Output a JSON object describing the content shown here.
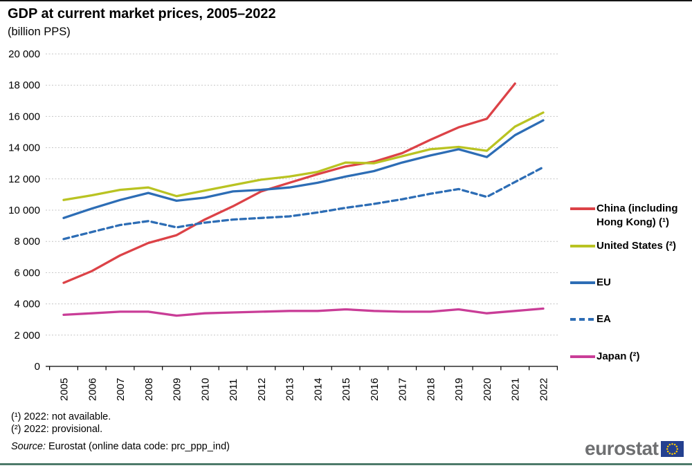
{
  "chart_data": {
    "type": "line",
    "title": "GDP at current market prices, 2005–2022",
    "subtitle": "(billion PPS)",
    "x": [
      2005,
      2006,
      2007,
      2008,
      2009,
      2010,
      2011,
      2012,
      2013,
      2014,
      2015,
      2016,
      2017,
      2018,
      2019,
      2020,
      2021,
      2022
    ],
    "x_tick_labels": [
      "2005",
      "2006",
      "2007",
      "2008",
      "2009",
      "2010",
      "2011",
      "2012",
      "2013",
      "2014",
      "2015",
      "2016",
      "2017",
      "2018",
      "2019",
      "2020",
      "2021",
      "2022"
    ],
    "y_ticks": [
      0,
      2000,
      4000,
      6000,
      8000,
      10000,
      12000,
      14000,
      16000,
      18000,
      20000
    ],
    "y_tick_labels": [
      "0",
      "2 000",
      "4 000",
      "6 000",
      "8 000",
      "10 000",
      "12 000",
      "14 000",
      "16 000",
      "18 000",
      "20 000"
    ],
    "ylim": [
      0,
      20000
    ],
    "grid": "horizontal-dotted",
    "legend_position": "right",
    "series": [
      {
        "id": "china-including-hong-kong",
        "name": "China (including Hong Kong) (¹)",
        "color": "#DC4247",
        "style": "solid",
        "values": [
          5350,
          6100,
          7100,
          7900,
          8400,
          9400,
          10250,
          11200,
          11750,
          12300,
          12800,
          13100,
          13650,
          14500,
          15300,
          15850,
          18100,
          null
        ]
      },
      {
        "id": "united-states",
        "name": "United States (²)",
        "color": "#B9C322",
        "style": "solid",
        "values": [
          10650,
          10950,
          11300,
          11450,
          10900,
          11250,
          11600,
          11950,
          12150,
          12450,
          13050,
          13000,
          13450,
          13900,
          14050,
          13800,
          15350,
          16250
        ]
      },
      {
        "id": "eu",
        "name": "EU",
        "color": "#2D6DB5",
        "style": "solid",
        "values": [
          9500,
          10100,
          10650,
          11100,
          10600,
          10800,
          11200,
          11300,
          11450,
          11750,
          12150,
          12500,
          13050,
          13500,
          13900,
          13400,
          14800,
          15750
        ]
      },
      {
        "id": "ea",
        "name": "EA",
        "color": "#2D6DB5",
        "style": "dashed",
        "values": [
          8150,
          8600,
          9050,
          9300,
          8900,
          9200,
          9400,
          9500,
          9600,
          9850,
          10150,
          10400,
          10700,
          11050,
          11350,
          10850,
          11800,
          12750
        ]
      },
      {
        "id": "japan",
        "name": "Japan (²)",
        "color": "#C93D97",
        "style": "solid",
        "values": [
          3300,
          3400,
          3500,
          3500,
          3250,
          3400,
          3450,
          3500,
          3550,
          3550,
          3650,
          3550,
          3500,
          3500,
          3650,
          3400,
          3550,
          3700
        ]
      }
    ]
  },
  "footnotes": {
    "note1": "(¹) 2022: not available.",
    "note2": "(²) 2022: provisional.",
    "source_label": "Source:",
    "source_text": " Eurostat (online data code: prc_ppp_ind)"
  },
  "branding": {
    "logo_text": "eurostat"
  }
}
